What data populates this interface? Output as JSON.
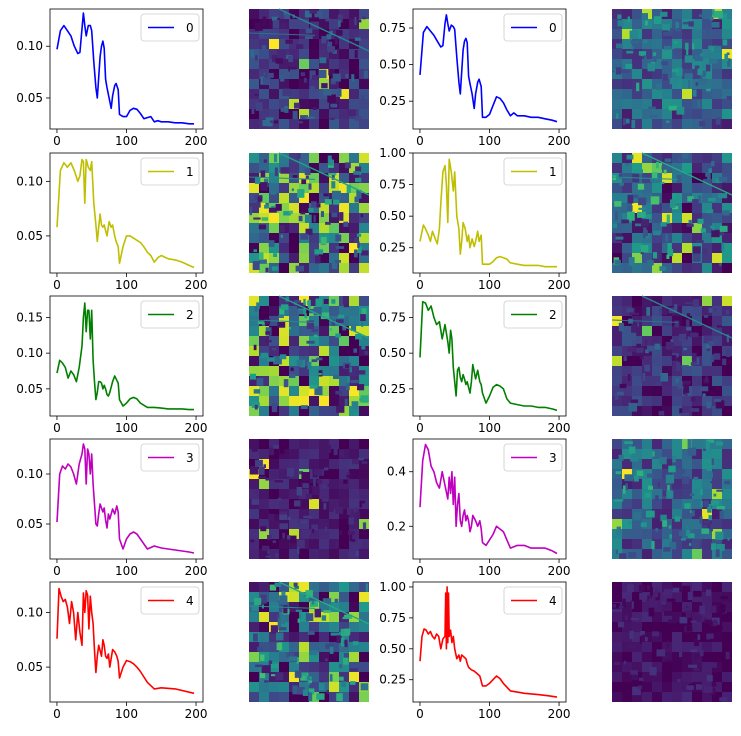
{
  "figure": {
    "description_free": true,
    "line_plots_per_row": 2,
    "rows": 5
  },
  "colors": {
    "0": "#0000ff",
    "1": "#bfbf00",
    "2": "#008000",
    "3": "#bf00bf",
    "4": "#ff0000",
    "axis": "#000000",
    "viridis_low": "#440154",
    "viridis_mid": "#21918c",
    "viridis_high": "#fde725"
  },
  "chart_data": [
    {
      "type": "line",
      "row": 0,
      "col": 0,
      "series_name": "0",
      "color_key": "0",
      "x_ticks": [
        0,
        100,
        200
      ],
      "y_ticks": [
        "0.05",
        "0.10"
      ],
      "xlim": [
        -10,
        210
      ],
      "ylim": [
        0.02,
        0.136
      ],
      "x": [
        0,
        5,
        10,
        15,
        20,
        25,
        30,
        33,
        36,
        38,
        40,
        42,
        45,
        48,
        50,
        53,
        56,
        58,
        60,
        62,
        64,
        66,
        68,
        70,
        72,
        75,
        78,
        80,
        83,
        85,
        88,
        90,
        95,
        100,
        105,
        110,
        115,
        120,
        125,
        130,
        135,
        140,
        145,
        150,
        160,
        170,
        180,
        190,
        197
      ],
      "y": [
        0.097,
        0.115,
        0.12,
        0.115,
        0.11,
        0.1,
        0.093,
        0.094,
        0.117,
        0.132,
        0.12,
        0.11,
        0.12,
        0.12,
        0.115,
        0.085,
        0.06,
        0.05,
        0.07,
        0.09,
        0.1,
        0.105,
        0.098,
        0.068,
        0.06,
        0.05,
        0.04,
        0.052,
        0.062,
        0.064,
        0.058,
        0.034,
        0.032,
        0.032,
        0.038,
        0.04,
        0.039,
        0.035,
        0.03,
        0.031,
        0.032,
        0.027,
        0.028,
        0.027,
        0.027,
        0.026,
        0.026,
        0.025,
        0.025
      ]
    },
    {
      "type": "line",
      "row": 0,
      "col": 2,
      "series_name": "0",
      "color_key": "0",
      "x_ticks": [
        0,
        100,
        200
      ],
      "y_ticks": [
        "0.25",
        "0.50",
        "0.75"
      ],
      "xlim": [
        -10,
        210
      ],
      "ylim": [
        0.06,
        0.88
      ],
      "x": [
        0,
        5,
        10,
        15,
        20,
        25,
        30,
        33,
        36,
        38,
        40,
        42,
        45,
        48,
        50,
        53,
        56,
        58,
        60,
        62,
        64,
        66,
        68,
        70,
        72,
        75,
        78,
        80,
        83,
        85,
        88,
        90,
        95,
        100,
        105,
        110,
        115,
        120,
        125,
        130,
        135,
        140,
        145,
        150,
        160,
        170,
        180,
        190,
        197
      ],
      "y": [
        0.43,
        0.72,
        0.76,
        0.73,
        0.7,
        0.66,
        0.62,
        0.63,
        0.78,
        0.84,
        0.78,
        0.73,
        0.77,
        0.76,
        0.74,
        0.55,
        0.38,
        0.3,
        0.45,
        0.6,
        0.66,
        0.68,
        0.65,
        0.42,
        0.37,
        0.3,
        0.2,
        0.3,
        0.38,
        0.4,
        0.35,
        0.14,
        0.14,
        0.16,
        0.22,
        0.28,
        0.27,
        0.24,
        0.19,
        0.15,
        0.17,
        0.15,
        0.15,
        0.15,
        0.14,
        0.14,
        0.13,
        0.12,
        0.11
      ]
    },
    {
      "type": "line",
      "row": 1,
      "col": 0,
      "series_name": "1",
      "color_key": "1",
      "x_ticks": [
        0,
        100,
        200
      ],
      "y_ticks": [
        "0.05",
        "0.10"
      ],
      "xlim": [
        -10,
        210
      ],
      "ylim": [
        0.016,
        0.126
      ],
      "x": [
        0,
        5,
        10,
        15,
        20,
        25,
        30,
        33,
        36,
        38,
        40,
        42,
        45,
        48,
        50,
        53,
        56,
        58,
        60,
        62,
        64,
        66,
        68,
        70,
        72,
        75,
        78,
        80,
        83,
        85,
        88,
        90,
        95,
        100,
        105,
        110,
        115,
        120,
        125,
        130,
        135,
        140,
        145,
        150,
        160,
        170,
        180,
        190,
        197
      ],
      "y": [
        0.058,
        0.11,
        0.117,
        0.113,
        0.117,
        0.11,
        0.1,
        0.105,
        0.12,
        0.118,
        0.08,
        0.12,
        0.113,
        0.11,
        0.118,
        0.08,
        0.06,
        0.045,
        0.058,
        0.07,
        0.06,
        0.058,
        0.06,
        0.055,
        0.05,
        0.063,
        0.058,
        0.06,
        0.05,
        0.045,
        0.04,
        0.025,
        0.04,
        0.05,
        0.05,
        0.048,
        0.046,
        0.044,
        0.04,
        0.035,
        0.032,
        0.026,
        0.03,
        0.032,
        0.029,
        0.028,
        0.026,
        0.023,
        0.021
      ]
    },
    {
      "type": "line",
      "row": 1,
      "col": 2,
      "series_name": "1",
      "color_key": "1",
      "x_ticks": [
        0,
        100,
        200
      ],
      "y_ticks": [
        "0.25",
        "0.50",
        "0.75",
        "1.00"
      ],
      "xlim": [
        -10,
        210
      ],
      "ylim": [
        0.05,
        1.0
      ],
      "x": [
        0,
        5,
        8,
        12,
        15,
        18,
        22,
        25,
        28,
        30,
        33,
        36,
        38,
        40,
        42,
        45,
        48,
        50,
        53,
        56,
        58,
        60,
        62,
        65,
        68,
        70,
        72,
        75,
        78,
        80,
        83,
        85,
        88,
        90,
        95,
        100,
        105,
        110,
        115,
        120,
        125,
        130,
        140,
        150,
        160,
        170,
        180,
        190,
        197
      ],
      "y": [
        0.3,
        0.43,
        0.4,
        0.35,
        0.3,
        0.38,
        0.32,
        0.28,
        0.4,
        0.6,
        0.85,
        0.9,
        0.75,
        0.45,
        0.95,
        0.85,
        0.7,
        0.85,
        0.5,
        0.4,
        0.2,
        0.3,
        0.45,
        0.4,
        0.3,
        0.35,
        0.25,
        0.32,
        0.26,
        0.3,
        0.38,
        0.3,
        0.35,
        0.12,
        0.12,
        0.12,
        0.14,
        0.17,
        0.18,
        0.17,
        0.16,
        0.13,
        0.12,
        0.11,
        0.11,
        0.11,
        0.1,
        0.1,
        0.1
      ]
    },
    {
      "type": "line",
      "row": 2,
      "col": 0,
      "series_name": "2",
      "color_key": "2",
      "x_ticks": [
        0,
        100,
        200
      ],
      "y_ticks": [
        "0.05",
        "0.10",
        "0.15"
      ],
      "xlim": [
        -10,
        210
      ],
      "ylim": [
        0.012,
        0.18
      ],
      "x": [
        0,
        4,
        8,
        12,
        16,
        20,
        24,
        28,
        32,
        36,
        38,
        40,
        42,
        44,
        46,
        48,
        50,
        52,
        54,
        56,
        58,
        60,
        62,
        64,
        66,
        68,
        70,
        72,
        74,
        76,
        80,
        83,
        86,
        88,
        90,
        95,
        100,
        105,
        110,
        115,
        120,
        130,
        140,
        150,
        160,
        170,
        180,
        190,
        197
      ],
      "y": [
        0.072,
        0.09,
        0.086,
        0.08,
        0.065,
        0.075,
        0.07,
        0.06,
        0.08,
        0.11,
        0.15,
        0.17,
        0.13,
        0.16,
        0.16,
        0.12,
        0.16,
        0.09,
        0.06,
        0.035,
        0.045,
        0.06,
        0.06,
        0.058,
        0.05,
        0.055,
        0.05,
        0.042,
        0.04,
        0.045,
        0.06,
        0.068,
        0.062,
        0.058,
        0.035,
        0.026,
        0.03,
        0.036,
        0.038,
        0.036,
        0.03,
        0.024,
        0.024,
        0.023,
        0.022,
        0.022,
        0.022,
        0.021,
        0.021
      ]
    },
    {
      "type": "line",
      "row": 2,
      "col": 2,
      "series_name": "2",
      "color_key": "2",
      "x_ticks": [
        0,
        100,
        200
      ],
      "y_ticks": [
        "0.25",
        "0.50",
        "0.75"
      ],
      "xlim": [
        -10,
        210
      ],
      "ylim": [
        0.06,
        0.9
      ],
      "x": [
        0,
        4,
        8,
        12,
        16,
        20,
        24,
        28,
        32,
        36,
        40,
        42,
        44,
        46,
        48,
        50,
        52,
        54,
        56,
        58,
        60,
        62,
        64,
        66,
        68,
        70,
        72,
        74,
        76,
        80,
        83,
        86,
        88,
        90,
        95,
        100,
        105,
        110,
        115,
        120,
        125,
        130,
        140,
        150,
        160,
        170,
        180,
        190,
        197
      ],
      "y": [
        0.47,
        0.86,
        0.85,
        0.8,
        0.83,
        0.75,
        0.7,
        0.72,
        0.6,
        0.7,
        0.58,
        0.5,
        0.66,
        0.6,
        0.4,
        0.3,
        0.2,
        0.38,
        0.4,
        0.33,
        0.3,
        0.35,
        0.32,
        0.28,
        0.3,
        0.26,
        0.22,
        0.3,
        0.42,
        0.32,
        0.38,
        0.3,
        0.28,
        0.22,
        0.15,
        0.2,
        0.26,
        0.28,
        0.27,
        0.25,
        0.18,
        0.15,
        0.14,
        0.13,
        0.13,
        0.12,
        0.12,
        0.11,
        0.1
      ]
    },
    {
      "type": "line",
      "row": 3,
      "col": 0,
      "series_name": "3",
      "color_key": "3",
      "x_ticks": [
        0,
        100,
        200
      ],
      "y_ticks": [
        "0.05",
        "0.10"
      ],
      "xlim": [
        -10,
        210
      ],
      "ylim": [
        0.015,
        0.135
      ],
      "x": [
        0,
        4,
        8,
        12,
        16,
        20,
        24,
        28,
        32,
        36,
        38,
        40,
        42,
        44,
        46,
        48,
        50,
        52,
        54,
        56,
        58,
        60,
        62,
        64,
        66,
        68,
        70,
        72,
        74,
        76,
        80,
        83,
        86,
        88,
        90,
        95,
        100,
        105,
        110,
        115,
        120,
        130,
        140,
        150,
        160,
        170,
        180,
        190,
        197
      ],
      "y": [
        0.052,
        0.1,
        0.108,
        0.105,
        0.11,
        0.107,
        0.1,
        0.09,
        0.11,
        0.12,
        0.13,
        0.125,
        0.09,
        0.125,
        0.12,
        0.1,
        0.12,
        0.09,
        0.07,
        0.05,
        0.048,
        0.06,
        0.07,
        0.066,
        0.062,
        0.066,
        0.054,
        0.046,
        0.06,
        0.055,
        0.065,
        0.06,
        0.068,
        0.062,
        0.035,
        0.025,
        0.035,
        0.04,
        0.042,
        0.04,
        0.035,
        0.025,
        0.028,
        0.026,
        0.025,
        0.024,
        0.023,
        0.022,
        0.021
      ]
    },
    {
      "type": "line",
      "row": 3,
      "col": 2,
      "series_name": "3",
      "color_key": "3",
      "x_ticks": [
        0,
        100,
        200
      ],
      "y_ticks": [
        "0.2",
        "0.4"
      ],
      "xlim": [
        -10,
        210
      ],
      "ylim": [
        0.08,
        0.52
      ],
      "x": [
        0,
        4,
        8,
        12,
        16,
        20,
        24,
        28,
        32,
        36,
        40,
        42,
        44,
        46,
        48,
        50,
        52,
        54,
        56,
        58,
        60,
        62,
        64,
        66,
        68,
        70,
        72,
        74,
        76,
        80,
        83,
        86,
        88,
        90,
        95,
        100,
        105,
        110,
        115,
        120,
        125,
        130,
        140,
        150,
        160,
        170,
        180,
        190,
        197
      ],
      "y": [
        0.27,
        0.44,
        0.5,
        0.48,
        0.42,
        0.4,
        0.36,
        0.34,
        0.4,
        0.35,
        0.3,
        0.38,
        0.32,
        0.4,
        0.28,
        0.38,
        0.2,
        0.28,
        0.32,
        0.22,
        0.2,
        0.24,
        0.26,
        0.22,
        0.24,
        0.22,
        0.18,
        0.2,
        0.24,
        0.22,
        0.2,
        0.22,
        0.19,
        0.14,
        0.13,
        0.15,
        0.17,
        0.2,
        0.19,
        0.18,
        0.15,
        0.12,
        0.13,
        0.13,
        0.12,
        0.12,
        0.12,
        0.11,
        0.1
      ]
    },
    {
      "type": "line",
      "row": 4,
      "col": 0,
      "series_name": "4",
      "color_key": "4",
      "x_ticks": [
        0,
        100,
        200
      ],
      "y_ticks": [
        "0.05",
        "0.10"
      ],
      "xlim": [
        -10,
        210
      ],
      "ylim": [
        0.018,
        0.128
      ],
      "x": [
        0,
        3,
        6,
        9,
        12,
        15,
        18,
        21,
        24,
        27,
        30,
        33,
        36,
        38,
        40,
        42,
        44,
        46,
        48,
        50,
        52,
        54,
        56,
        58,
        60,
        62,
        64,
        66,
        68,
        70,
        72,
        74,
        76,
        80,
        83,
        86,
        88,
        90,
        95,
        100,
        105,
        110,
        115,
        120,
        130,
        140,
        150,
        170,
        197
      ],
      "y": [
        0.076,
        0.122,
        0.115,
        0.11,
        0.112,
        0.105,
        0.09,
        0.11,
        0.1,
        0.075,
        0.1,
        0.082,
        0.07,
        0.118,
        0.1,
        0.12,
        0.116,
        0.085,
        0.115,
        0.1,
        0.09,
        0.065,
        0.045,
        0.06,
        0.07,
        0.065,
        0.06,
        0.075,
        0.07,
        0.06,
        0.058,
        0.062,
        0.05,
        0.066,
        0.064,
        0.06,
        0.055,
        0.04,
        0.05,
        0.056,
        0.055,
        0.053,
        0.05,
        0.046,
        0.036,
        0.03,
        0.031,
        0.03,
        0.026
      ]
    },
    {
      "type": "line",
      "row": 4,
      "col": 2,
      "series_name": "4",
      "color_key": "4",
      "x_ticks": [
        0,
        100,
        200
      ],
      "y_ticks": [
        "0.25",
        "0.50",
        "0.75",
        "1.00"
      ],
      "xlim": [
        -10,
        210
      ],
      "ylim": [
        0.07,
        1.04
      ],
      "x": [
        0,
        3,
        6,
        9,
        12,
        15,
        18,
        21,
        24,
        27,
        30,
        33,
        36,
        37,
        38,
        39,
        40,
        41,
        42,
        44,
        46,
        48,
        50,
        53,
        56,
        58,
        60,
        62,
        64,
        66,
        68,
        70,
        74,
        78,
        82,
        86,
        90,
        95,
        100,
        105,
        110,
        115,
        120,
        130,
        140,
        150,
        170,
        185,
        197
      ],
      "y": [
        0.4,
        0.6,
        0.66,
        0.65,
        0.62,
        0.64,
        0.6,
        0.58,
        0.62,
        0.6,
        0.5,
        0.58,
        0.6,
        0.95,
        0.5,
        1.0,
        0.55,
        0.95,
        0.6,
        0.65,
        0.55,
        0.6,
        0.5,
        0.42,
        0.45,
        0.4,
        0.45,
        0.44,
        0.43,
        0.42,
        0.38,
        0.35,
        0.33,
        0.32,
        0.3,
        0.28,
        0.2,
        0.2,
        0.22,
        0.25,
        0.28,
        0.26,
        0.22,
        0.16,
        0.15,
        0.14,
        0.13,
        0.12,
        0.11
      ]
    }
  ],
  "images": [
    {
      "row": 0,
      "col": 1,
      "scheme": "dark_field_with_road"
    },
    {
      "row": 0,
      "col": 3,
      "scheme": "teal_fields"
    },
    {
      "row": 1,
      "col": 1,
      "scheme": "bright_yellow_patches"
    },
    {
      "row": 1,
      "col": 3,
      "scheme": "mixed_fields"
    },
    {
      "row": 2,
      "col": 1,
      "scheme": "bright_yellow_patches"
    },
    {
      "row": 2,
      "col": 3,
      "scheme": "dark_field_with_road"
    },
    {
      "row": 3,
      "col": 1,
      "scheme": "very_dark_sparse"
    },
    {
      "row": 3,
      "col": 3,
      "scheme": "teal_fields"
    },
    {
      "row": 4,
      "col": 1,
      "scheme": "mixed_fields"
    },
    {
      "row": 4,
      "col": 3,
      "scheme": "nearly_uniform_dark"
    }
  ]
}
